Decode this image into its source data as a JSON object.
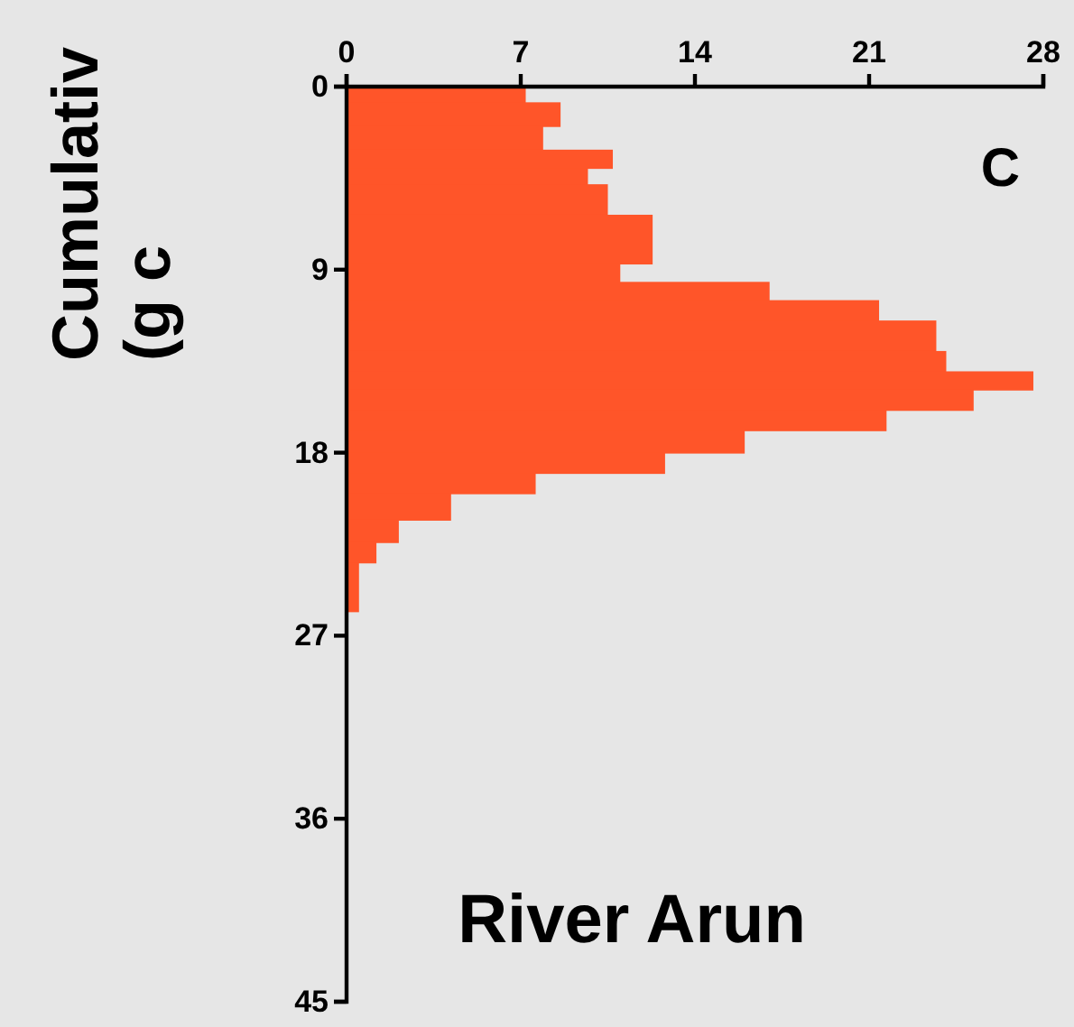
{
  "chart_data": {
    "type": "histogram",
    "orientation": "horizontal",
    "ylabel": "Cumulativ\n(g c",
    "annotations": [
      "C",
      "River Arun"
    ],
    "bins": [
      0,
      0.77,
      1.94,
      3.1,
      4.0,
      4.8,
      6.3,
      8.7,
      9.6,
      10.5,
      11.5,
      13.0,
      14.0,
      14.9,
      15.9,
      16.9,
      18.0,
      19.0,
      20.0,
      21.3,
      22.4,
      23.4,
      25.8
    ],
    "values": [
      7.2,
      8.6,
      7.9,
      10.7,
      9.7,
      10.5,
      12.3,
      11.0,
      17.0,
      21.4,
      23.7,
      24.1,
      27.6,
      25.2,
      21.7,
      16.0,
      12.8,
      7.6,
      4.2,
      2.1,
      1.2,
      0.5
    ],
    "color": "#ff5529",
    "xlim": [
      0,
      28
    ],
    "xticks": [
      0,
      7,
      14,
      21,
      28
    ],
    "ylim": [
      45,
      0
    ],
    "yticks": [
      0,
      9,
      18,
      27,
      36,
      45
    ],
    "grid": false
  }
}
